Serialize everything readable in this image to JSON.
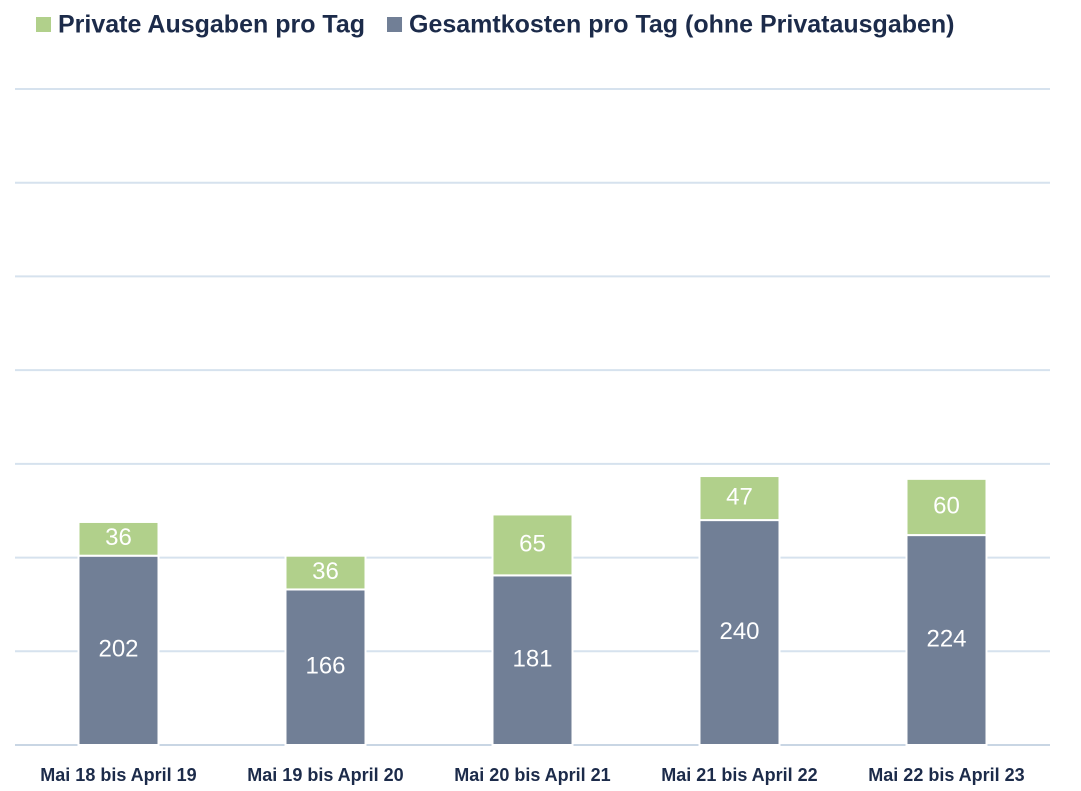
{
  "chart_data": {
    "type": "bar",
    "stacked": true,
    "categories": [
      "Mai 18 bis April 19",
      "Mai 19 bis April 20",
      "Mai 20 bis April 21",
      "Mai 21 bis April 22",
      "Mai 22 bis April 23"
    ],
    "series": [
      {
        "name": "Private Ausgaben pro Tag",
        "color": "#b1d08b",
        "values": [
          36,
          36,
          65,
          47,
          60
        ]
      },
      {
        "name": "Gesamtkosten pro Tag (ohne Privatausgaben)",
        "color": "#717f96",
        "values": [
          202,
          166,
          181,
          240,
          224
        ]
      }
    ],
    "ylim": [
      0,
      700
    ],
    "yticks": [
      0,
      100,
      200,
      300,
      400,
      500,
      600,
      700
    ],
    "grid": true,
    "legend": "top"
  }
}
